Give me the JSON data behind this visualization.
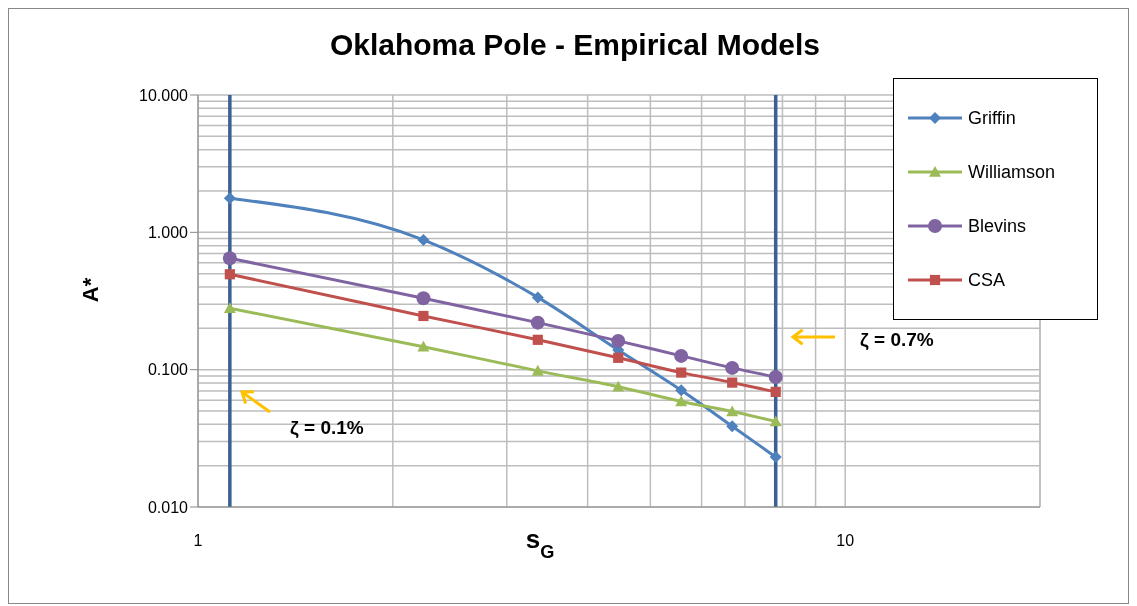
{
  "chart_data": {
    "type": "line",
    "title": "Oklahoma Pole - Empirical Models",
    "xlabel": "s$_{G}$",
    "ylabel": "A*",
    "x": [
      1.12,
      2.23,
      3.35,
      4.46,
      5.58,
      6.69,
      7.81
    ],
    "series": [
      {
        "name": "Griffin",
        "color": "#4f81bd",
        "marker": "diamond",
        "values": [
          1.77,
          0.88,
          0.336,
          0.139,
          0.0707,
          0.0387,
          0.0231
        ]
      },
      {
        "name": "Williamson",
        "color": "#9bbb59",
        "marker": "triangle",
        "values": [
          0.28,
          0.147,
          0.098,
          0.0752,
          0.0587,
          0.0496,
          0.042
        ]
      },
      {
        "name": "Blevins",
        "color": "#8064a2",
        "marker": "circle",
        "values": [
          0.648,
          0.331,
          0.22,
          0.162,
          0.126,
          0.103,
          0.0885
        ]
      },
      {
        "name": "CSA",
        "color": "#c0504d",
        "marker": "square",
        "values": [
          0.495,
          0.246,
          0.165,
          0.122,
          0.0952,
          0.0805,
          0.0689
        ]
      }
    ],
    "log": "xy",
    "xlim": [
      1,
      20
    ],
    "xticks": [
      1,
      10
    ],
    "ylim": [
      0.01,
      10
    ],
    "yticks": [
      {
        "value": 0.01,
        "label": "0.010"
      },
      {
        "value": 0.1,
        "label": "0.100"
      },
      {
        "value": 1,
        "label": "1.000"
      },
      {
        "value": 10,
        "label": "10.000"
      }
    ],
    "grid": true,
    "legend": "top right",
    "ref_lines": [
      {
        "axis": "x",
        "value": 1.12,
        "color": "#3a6192"
      },
      {
        "axis": "x",
        "value": 7.81,
        "color": "#3a6192"
      }
    ],
    "annotations": [
      "ζ = 0.1%",
      "ζ = 0.7%"
    ]
  }
}
